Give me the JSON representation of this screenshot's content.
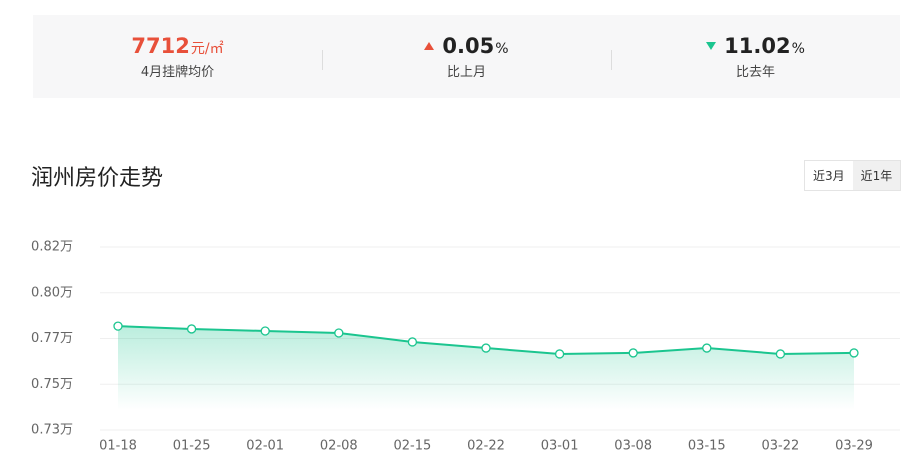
{
  "stats": [
    {
      "value": "7712",
      "unit": "元/㎡",
      "label": "4月挂牌均价"
    },
    {
      "value": "0.05",
      "unit": "%",
      "label": "比上月"
    },
    {
      "value": "11.02",
      "unit": "%",
      "label": "比去年"
    }
  ],
  "range_options": [
    "近3月",
    "近1年"
  ],
  "chart_data": {
    "type": "line",
    "title": "润州房价走势",
    "categories": [
      "01-18",
      "01-25",
      "02-01",
      "02-08",
      "02-15",
      "02-22",
      "03-01",
      "03-08",
      "03-15",
      "03-22",
      "03-29"
    ],
    "values": [
      0.7811,
      0.7797,
      0.7787,
      0.7777,
      0.7733,
      0.7703,
      0.7674,
      0.7679,
      0.7703,
      0.7674,
      0.7679
    ],
    "color": "#1bc58f",
    "ylim": [
      0.73,
      0.82
    ],
    "yticks": [
      {
        "value": 0.82,
        "label": "0.82万"
      },
      {
        "value": 0.7975,
        "label": "0.80万"
      },
      {
        "value": 0.775,
        "label": "0.77万"
      },
      {
        "value": 0.7525,
        "label": "0.75万"
      },
      {
        "value": 0.73,
        "label": "0.73万"
      }
    ],
    "grid": true
  }
}
